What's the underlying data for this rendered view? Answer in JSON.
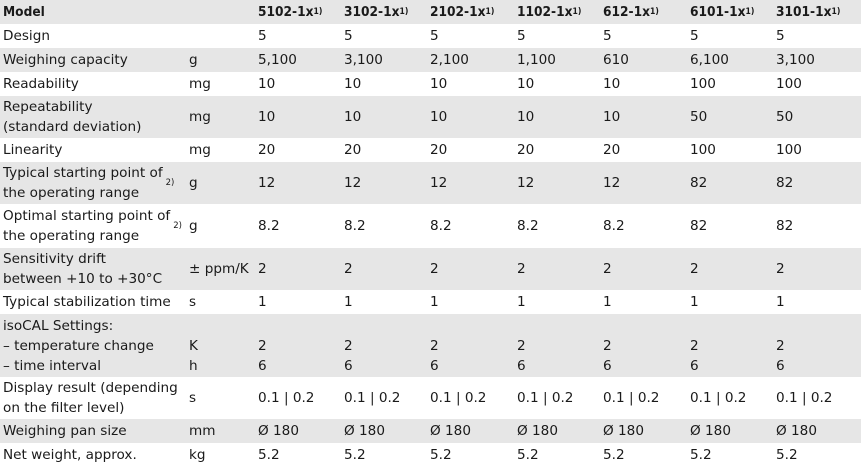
{
  "header": {
    "label": "Model",
    "models": [
      "5102-1x",
      "3102-1x",
      "2102-1x",
      "1102-1x",
      "612-1x",
      "6101-1x",
      "3101-1x"
    ],
    "footnote_mark": "1)"
  },
  "rows": [
    {
      "label": "Design",
      "unit": "",
      "values": [
        "5",
        "5",
        "5",
        "5",
        "5",
        "5",
        "5"
      ]
    },
    {
      "label": "Weighing capacity",
      "unit": "g",
      "values": [
        "5,100",
        "3,100",
        "2,100",
        "1,100",
        "610",
        "6,100",
        "3,100"
      ]
    },
    {
      "label": "Readability",
      "unit": "mg",
      "values": [
        "10",
        "10",
        "10",
        "10",
        "10",
        "100",
        "100"
      ]
    },
    {
      "label": "Repeatability\n(standard deviation)",
      "unit": "mg",
      "values": [
        "10",
        "10",
        "10",
        "10",
        "10",
        "50",
        "50"
      ]
    },
    {
      "label": "Linearity",
      "unit": "mg",
      "values": [
        "20",
        "20",
        "20",
        "20",
        "20",
        "100",
        "100"
      ]
    },
    {
      "label": "Typical starting point of\nthe operating range",
      "footnote": "2)",
      "unit": "g",
      "values": [
        "12",
        "12",
        "12",
        "12",
        "12",
        "82",
        "82"
      ]
    },
    {
      "label": "Optimal starting point of\nthe operating range",
      "footnote": "2)",
      "unit": "g",
      "values": [
        "8.2",
        "8.2",
        "8.2",
        "8.2",
        "8.2",
        "82",
        "82"
      ]
    },
    {
      "label": "Sensitivity drift\nbetween +10 to +30°C",
      "unit": "± ppm/K",
      "values": [
        "2",
        "2",
        "2",
        "2",
        "2",
        "2",
        "2"
      ]
    },
    {
      "label": "Typical stabilization time",
      "unit": "s",
      "values": [
        "1",
        "1",
        "1",
        "1",
        "1",
        "1",
        "1"
      ]
    },
    {
      "label": "isoCAL Settings:\n– temperature change\n– time interval",
      "unit": "\nK\nh",
      "values": [
        "\n2\n6",
        "\n2\n6",
        "\n2\n6",
        "\n2\n6",
        "\n2\n6",
        "\n2\n6",
        "\n2\n6"
      ]
    },
    {
      "label": "Display result (depending\non the filter level)",
      "unit": "s",
      "values": [
        "0.1 | 0.2",
        "0.1 | 0.2",
        "0.1 | 0.2",
        "0.1 | 0.2",
        "0.1 | 0.2",
        "0.1 | 0.2",
        "0.1 | 0.2"
      ]
    },
    {
      "label": "Weighing pan size",
      "unit": "mm",
      "values": [
        "Ø 180",
        "Ø 180",
        "Ø 180",
        "Ø 180",
        "Ø 180",
        "Ø 180",
        "Ø 180"
      ]
    },
    {
      "label": "Net weight, approx.",
      "unit": "kg",
      "values": [
        "5.2",
        "5.2",
        "5.2",
        "5.2",
        "5.2",
        "5.2",
        "5.2"
      ]
    }
  ]
}
